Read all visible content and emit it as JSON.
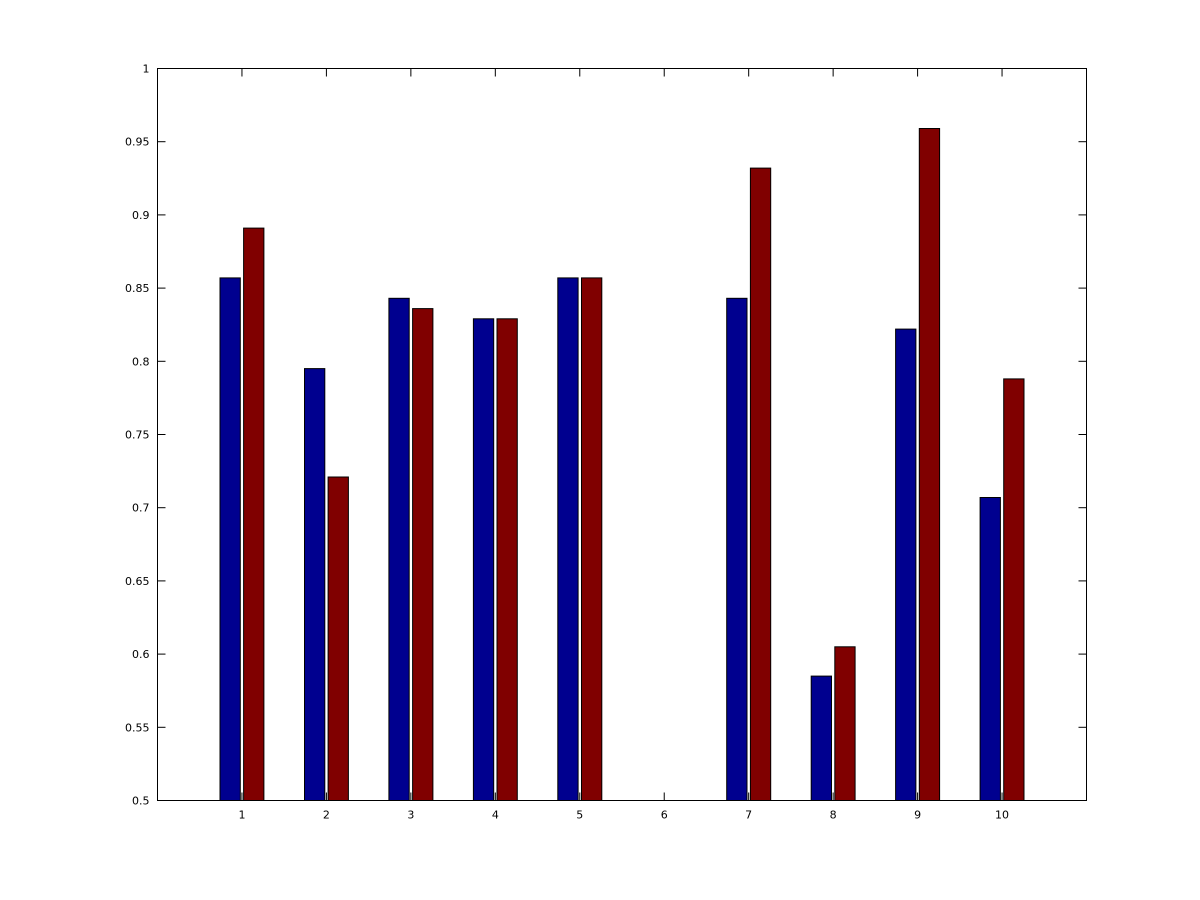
{
  "chart_data": {
    "type": "bar",
    "categories": [
      "1",
      "2",
      "3",
      "4",
      "5",
      "6",
      "7",
      "8",
      "9",
      "10"
    ],
    "series": [
      {
        "color": "#00008f",
        "values": [
          0.857,
          0.795,
          0.843,
          0.829,
          0.857,
          null,
          0.843,
          0.585,
          0.822,
          0.707
        ]
      },
      {
        "color": "#800000",
        "values": [
          0.891,
          0.721,
          0.836,
          0.829,
          0.857,
          null,
          0.932,
          0.605,
          0.959,
          0.788
        ]
      }
    ],
    "ylim": [
      0.5,
      1
    ],
    "yticks": [
      "0.5",
      "0.55",
      "0.6",
      "0.65",
      "0.7",
      "0.75",
      "0.8",
      "0.85",
      "0.9",
      "0.95",
      "1"
    ],
    "xlim": [
      0,
      11
    ],
    "grid": false,
    "legend": "none",
    "title": "",
    "xlabel": "",
    "ylabel": ""
  }
}
